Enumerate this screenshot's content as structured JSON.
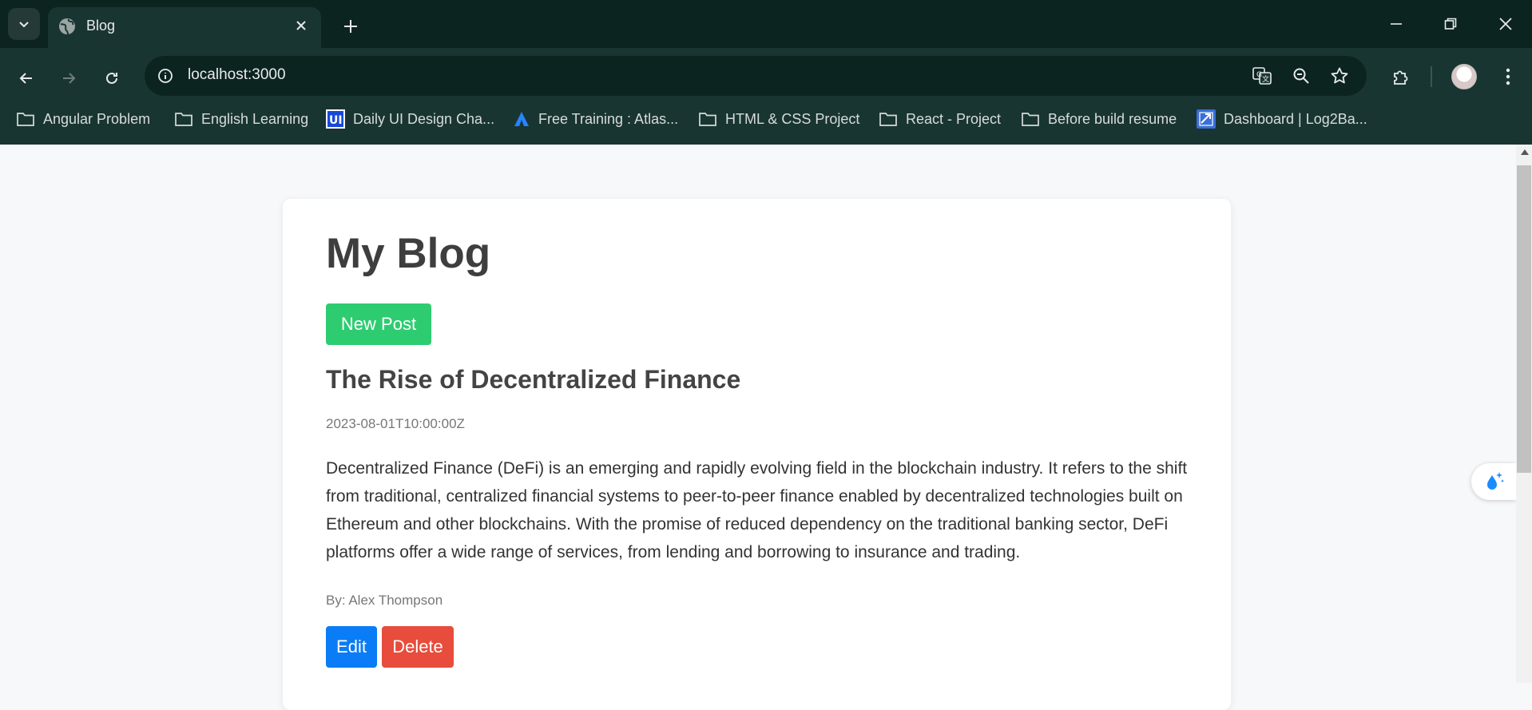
{
  "browser": {
    "tab": {
      "title": "Blog"
    },
    "omnibox": {
      "url": "localhost:3000"
    },
    "bookmarks": [
      {
        "label": "Angular Problem",
        "icon": "folder-icon"
      },
      {
        "label": "English Learning",
        "icon": "folder-icon"
      },
      {
        "label": "Daily UI Design Cha...",
        "icon": "ui-logo-icon"
      },
      {
        "label": "Free Training : Atlas...",
        "icon": "atlassian-icon"
      },
      {
        "label": "HTML & CSS Project",
        "icon": "folder-icon"
      },
      {
        "label": "React - Project",
        "icon": "folder-icon"
      },
      {
        "label": "Before build resume",
        "icon": "folder-icon"
      },
      {
        "label": "Dashboard | Log2Ba...",
        "icon": "dashboard-icon"
      }
    ],
    "colors": {
      "frame": "#0c2420",
      "toolbar": "#193531"
    }
  },
  "page": {
    "heading": "My Blog",
    "new_post_label": "New Post",
    "post": {
      "title": "The Rise of Decentralized Finance",
      "date": "2023-08-01T10:00:00Z",
      "body": "Decentralized Finance (DeFi) is an emerging and rapidly evolving field in the blockchain industry. It refers to the shift from traditional, centralized financial systems to peer-to-peer finance enabled by decentralized technologies built on Ethereum and other blockchains. With the promise of reduced dependency on the traditional banking sector, DeFi platforms offer a wide range of services, from lending and borrowing to insurance and trading.",
      "author": "By: Alex Thompson",
      "edit_label": "Edit",
      "delete_label": "Delete"
    },
    "colors": {
      "new_post": "#2ecc71",
      "edit": "#0a7cf5",
      "delete": "#e74c3c"
    }
  }
}
